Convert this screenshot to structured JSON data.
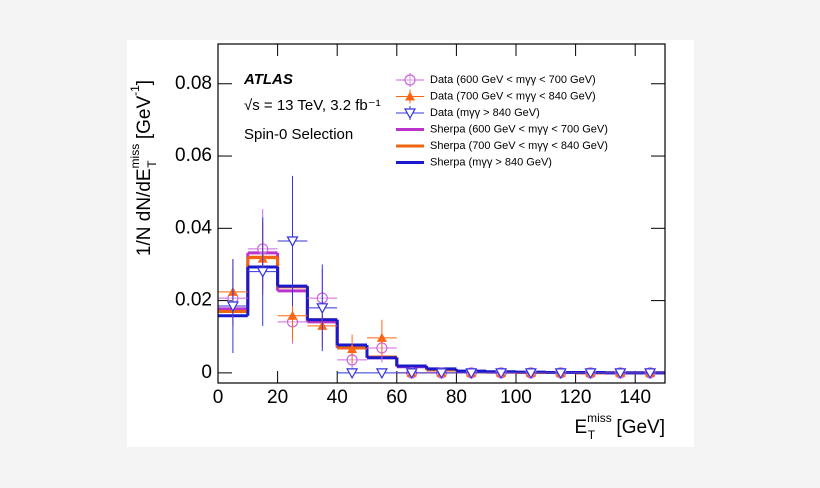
{
  "chart_data": {
    "type": "histogram",
    "annotations": [
      "ATLAS",
      "√s = 13 TeV, 3.2 fb⁻¹",
      "Spin-0 Selection"
    ],
    "xlabel": {
      "main": "E",
      "sub": "T",
      "sup": "miss",
      "unit": " [GeV]"
    },
    "ylabel": {
      "main": "1/N dN/dE",
      "sub": "T",
      "sup": "miss",
      "unit": " [GeV",
      "unit_sup": "-1",
      "end": "]"
    },
    "bins": [
      0,
      10,
      20,
      30,
      40,
      50,
      60,
      70,
      80,
      90,
      100,
      110,
      120,
      130,
      140,
      150
    ],
    "xlim": [
      0,
      150
    ],
    "xticks": [
      0,
      20,
      40,
      60,
      80,
      100,
      120,
      140
    ],
    "ylim": [
      -0.0028,
      0.091
    ],
    "yticks": [
      0,
      0.02,
      0.04,
      0.06,
      0.08
    ],
    "series": [
      {
        "name": "Data (600 GeV < mγγ < 700 GeV)",
        "color": "#cc66dd",
        "style": "points",
        "marker": "circle-open",
        "values": [
          0.0207,
          0.0343,
          0.0141,
          0.0207,
          0.0036,
          0.0069,
          0,
          0,
          0,
          0,
          0,
          0,
          0,
          0,
          0
        ],
        "errors": [
          0.008,
          0.011,
          0.006,
          0.008,
          0.003,
          0.004,
          0,
          0,
          0,
          0,
          0,
          0,
          0,
          0,
          0
        ]
      },
      {
        "name": "Data (700 GeV < mγγ < 840 GeV)",
        "color": "#ff6611",
        "style": "points",
        "marker": "triangle-up",
        "values": [
          0.0224,
          0.0316,
          0.0158,
          0.013,
          0.0066,
          0.0097,
          0,
          0,
          0,
          0,
          0,
          0,
          0,
          0,
          0
        ],
        "errors": [
          0.009,
          0.01,
          0.007,
          0.006,
          0.004,
          0.005,
          0,
          0,
          0,
          0,
          0,
          0,
          0,
          0,
          0
        ]
      },
      {
        "name": "Data (mγγ > 840 GeV)",
        "color": "#3333dd",
        "style": "points",
        "marker": "triangle-down-open",
        "values": [
          0.0185,
          0.028,
          0.0365,
          0.018,
          0,
          0,
          0,
          0,
          0,
          0,
          0,
          0,
          0,
          0,
          0
        ],
        "errors": [
          0.013,
          0.015,
          0.018,
          0.012,
          0,
          0,
          0,
          0,
          0,
          0,
          0,
          0,
          0,
          0,
          0
        ]
      },
      {
        "name": "Sherpa (600 GeV < mγγ < 700 GeV)",
        "color": "#bb33cc",
        "style": "step",
        "values": [
          0.0177,
          0.0332,
          0.0227,
          0.0141,
          0.0069,
          0.0042,
          0.0017,
          0.0008,
          0.0004,
          0.0002,
          0.0001,
          0.0001,
          0,
          0,
          0
        ]
      },
      {
        "name": "Sherpa (700 GeV < mγγ < 840 GeV)",
        "color": "#ee6611",
        "style": "step",
        "values": [
          0.017,
          0.032,
          0.0238,
          0.0147,
          0.0072,
          0.0044,
          0.0019,
          0.0008,
          0.0004,
          0.0002,
          0.0001,
          0.0001,
          0,
          0,
          0
        ]
      },
      {
        "name": "Sherpa (mγγ > 840 GeV)",
        "color": "#1a1acc",
        "style": "step",
        "values": [
          0.0158,
          0.0293,
          0.024,
          0.0147,
          0.0077,
          0.0042,
          0.0019,
          0.0011,
          0.0005,
          0.0003,
          0.0002,
          0.0001,
          0.0001,
          0,
          0
        ]
      }
    ]
  }
}
